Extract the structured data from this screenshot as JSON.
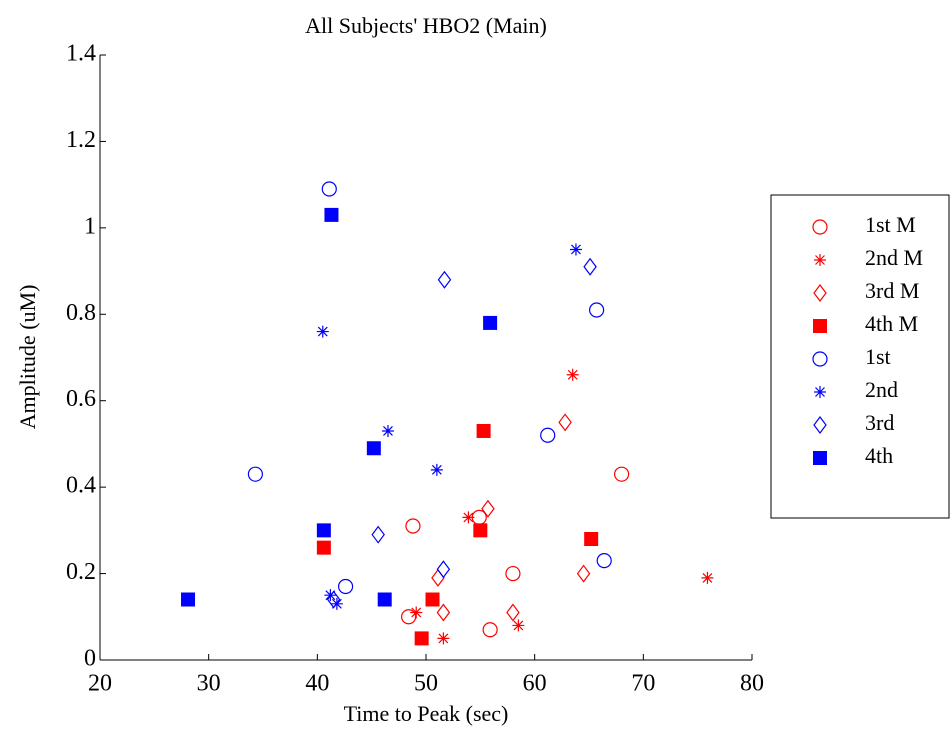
{
  "chart_data": {
    "type": "scatter",
    "title": "All Subjects' HBO2 (Main)",
    "x_label": "Time to Peak (sec)",
    "y_label": "Amplitude (uM)",
    "xlim": [
      20,
      80
    ],
    "xticks": [
      20,
      30,
      40,
      50,
      60,
      70,
      80
    ],
    "ylim": [
      0,
      1.4
    ],
    "yticks": [
      0,
      0.2,
      0.4,
      0.6,
      0.8,
      1,
      1.2,
      1.4
    ],
    "legend_position": "right",
    "series": [
      {
        "name": "1st M",
        "color": "#ff0000",
        "marker": "circle",
        "x": [
          48.4,
          48.8,
          54.9,
          55.9,
          58.0,
          68.0
        ],
        "values": [
          0.1,
          0.31,
          0.33,
          0.07,
          0.2,
          0.43
        ]
      },
      {
        "name": "2nd M",
        "color": "#ff0000",
        "marker": "star",
        "x": [
          49.1,
          51.6,
          53.9,
          58.5,
          63.5,
          75.9
        ],
        "values": [
          0.11,
          0.05,
          0.33,
          0.08,
          0.66,
          0.19
        ]
      },
      {
        "name": "3rd M",
        "color": "#ff0000",
        "marker": "diamond",
        "x": [
          51.1,
          51.6,
          55.7,
          58.0,
          62.8,
          64.5
        ],
        "values": [
          0.19,
          0.11,
          0.35,
          0.11,
          0.55,
          0.2
        ]
      },
      {
        "name": "4th M",
        "color": "#ff0000",
        "marker": "square",
        "x": [
          40.6,
          49.6,
          50.6,
          55.0,
          55.3,
          65.2
        ],
        "values": [
          0.26,
          0.05,
          0.14,
          0.3,
          0.53,
          0.28
        ]
      },
      {
        "name": "1st",
        "color": "#0000ff",
        "marker": "circle",
        "x": [
          34.3,
          41.1,
          42.6,
          61.2,
          65.7,
          66.4
        ],
        "values": [
          0.43,
          1.09,
          0.17,
          0.52,
          0.81,
          0.23
        ]
      },
      {
        "name": "2nd",
        "color": "#0000ff",
        "marker": "star",
        "x": [
          40.5,
          41.2,
          41.8,
          46.5,
          51.0,
          63.8
        ],
        "values": [
          0.76,
          0.15,
          0.13,
          0.53,
          0.44,
          0.95
        ]
      },
      {
        "name": "3rd",
        "color": "#0000ff",
        "marker": "diamond",
        "x": [
          41.5,
          45.6,
          51.6,
          51.7,
          65.1
        ],
        "values": [
          0.14,
          0.29,
          0.21,
          0.88,
          0.91
        ]
      },
      {
        "name": "4th",
        "color": "#0000ff",
        "marker": "square",
        "x": [
          28.1,
          40.6,
          41.3,
          45.2,
          46.2,
          55.9
        ],
        "values": [
          0.14,
          0.3,
          1.03,
          0.49,
          0.14,
          0.78
        ]
      }
    ]
  }
}
